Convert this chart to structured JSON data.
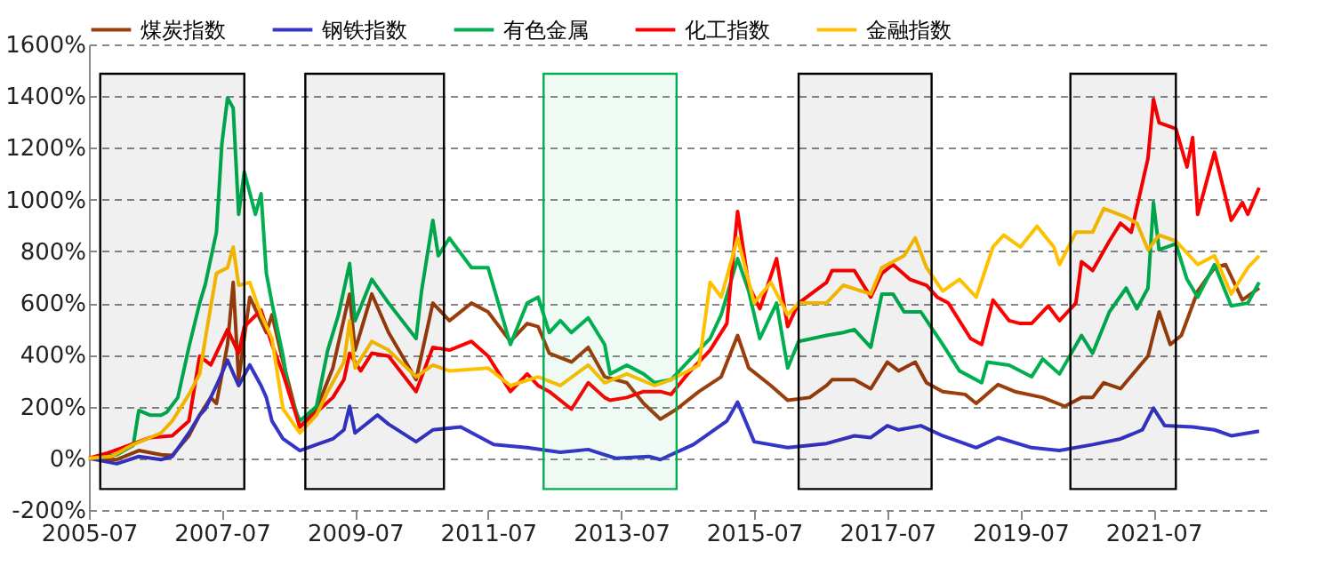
{
  "chart_data": {
    "type": "line",
    "legend": "top",
    "grid": "y",
    "xlim": [
      "2005-07",
      "2023-04"
    ],
    "xticks": [
      "2005-07",
      "2007-07",
      "2009-07",
      "2011-07",
      "2013-07",
      "2015-07",
      "2017-07",
      "2019-07",
      "2021-07"
    ],
    "ylim": [
      -200,
      1600
    ],
    "yticks": [
      {
        "value": -200,
        "label": "-200%"
      },
      {
        "value": 0,
        "label": "0%"
      },
      {
        "value": 200,
        "label": "200%"
      },
      {
        "value": 400,
        "label": "400%"
      },
      {
        "value": 600,
        "label": "600%"
      },
      {
        "value": 800,
        "label": "800%"
      },
      {
        "value": 1000,
        "label": "1000%"
      },
      {
        "value": 1200,
        "label": "1200%"
      },
      {
        "value": 1400,
        "label": "1400%"
      },
      {
        "value": 1600,
        "label": "1600%"
      }
    ],
    "bands": [
      {
        "axis": "x",
        "from": "2005-09",
        "to": "2007-11",
        "color": "#000000"
      },
      {
        "axis": "x",
        "from": "2008-10",
        "to": "2010-11",
        "color": "#000000"
      },
      {
        "axis": "x",
        "from": "2012-05",
        "to": "2014-05",
        "color": "#00b050"
      },
      {
        "axis": "x",
        "from": "2016-03",
        "to": "2018-03",
        "color": "#000000"
      },
      {
        "axis": "x",
        "from": "2020-04",
        "to": "2021-11",
        "color": "#000000"
      }
    ],
    "series": [
      {
        "name": "煤炭指数",
        "color": "#9c3d0c",
        "x": [
          "2005-07",
          "2005-12",
          "2006-04",
          "2006-08",
          "2006-10",
          "2007-01",
          "2007-03",
          "2007-05",
          "2007-06",
          "2007-08",
          "2007-09",
          "2007-10",
          "2007-12",
          "2008-03",
          "2008-04",
          "2008-06",
          "2008-09",
          "2008-12",
          "2009-03",
          "2009-06",
          "2009-07",
          "2009-10",
          "2010-01",
          "2010-06",
          "2010-09",
          "2010-12",
          "2011-04",
          "2011-07",
          "2011-11",
          "2012-02",
          "2012-04",
          "2012-06",
          "2012-10",
          "2013-01",
          "2013-04",
          "2013-08",
          "2013-11",
          "2014-02",
          "2014-05",
          "2014-09",
          "2015-01",
          "2015-04",
          "2015-06",
          "2015-10",
          "2016-01",
          "2016-05",
          "2016-08",
          "2016-09",
          "2017-01",
          "2017-04",
          "2017-07",
          "2017-09",
          "2017-12",
          "2018-02",
          "2018-05",
          "2018-09",
          "2018-11",
          "2019-03",
          "2019-06",
          "2019-11",
          "2020-03",
          "2020-06",
          "2020-08",
          "2020-10",
          "2021-01",
          "2021-06",
          "2021-08",
          "2021-10",
          "2021-12",
          "2022-03",
          "2022-06",
          "2022-08",
          "2022-11",
          "2023-02"
        ],
        "values": [
          0,
          -5,
          30,
          14,
          11,
          87,
          167,
          235,
          212,
          440,
          680,
          304,
          623,
          486,
          555,
          372,
          121,
          190,
          349,
          635,
          418,
          635,
          486,
          304,
          600,
          532,
          600,
          566,
          452,
          521,
          509,
          406,
          372,
          429,
          315,
          292,
          212,
          151,
          190,
          258,
          315,
          475,
          349,
          281,
          224,
          235,
          281,
          304,
          304,
          269,
          372,
          338,
          372,
          292,
          258,
          247,
          212,
          285,
          258,
          235,
          201,
          235,
          235,
          292,
          269,
          395,
          566,
          440,
          475,
          646,
          737,
          749,
          612,
          658
        ]
      },
      {
        "name": "钢铁指数",
        "color": "#3535c8",
        "x": [
          "2005-07",
          "2005-12",
          "2006-04",
          "2006-08",
          "2006-10",
          "2007-01",
          "2007-03",
          "2007-04",
          "2007-06",
          "2007-08",
          "2007-10",
          "2007-12",
          "2008-02",
          "2008-03",
          "2008-04",
          "2008-06",
          "2008-09",
          "2008-12",
          "2009-03",
          "2009-05",
          "2009-06",
          "2009-07",
          "2009-11",
          "2010-01",
          "2010-06",
          "2010-09",
          "2011-02",
          "2011-08",
          "2012-02",
          "2012-08",
          "2013-01",
          "2013-06",
          "2013-12",
          "2014-02",
          "2014-08",
          "2015-02",
          "2015-04",
          "2015-07",
          "2016-01",
          "2016-08",
          "2017-01",
          "2017-04",
          "2017-07",
          "2017-09",
          "2018-01",
          "2018-05",
          "2018-11",
          "2019-03",
          "2019-09",
          "2020-02",
          "2020-08",
          "2021-01",
          "2021-05",
          "2021-07",
          "2021-09",
          "2022-02",
          "2022-06",
          "2022-09",
          "2023-02"
        ],
        "values": [
          0,
          -21,
          7,
          -5,
          7,
          98,
          167,
          190,
          281,
          379,
          281,
          361,
          281,
          235,
          144,
          75,
          30,
          53,
          75,
          110,
          201,
          98,
          167,
          132,
          64,
          110,
          121,
          53,
          41,
          23,
          34,
          0,
          7,
          -5,
          53,
          144,
          217,
          64,
          41,
          57,
          87,
          80,
          126,
          110,
          126,
          87,
          41,
          80,
          41,
          30,
          53,
          75,
          110,
          194,
          126,
          121,
          110,
          87,
          105
        ]
      },
      {
        "name": "有色金属",
        "color": "#00b050",
        "x": [
          "2005-07",
          "2005-12",
          "2006-03",
          "2006-04",
          "2006-06",
          "2006-08",
          "2006-09",
          "2006-11",
          "2007-01",
          "2007-03",
          "2007-04",
          "2007-06",
          "2007-07",
          "2007-08",
          "2007-09",
          "2007-10",
          "2007-11",
          "2008-01",
          "2008-02",
          "2008-03",
          "2008-04",
          "2008-06",
          "2008-07",
          "2008-09",
          "2008-12",
          "2009-02",
          "2009-04",
          "2009-06",
          "2009-07",
          "2009-10",
          "2010-01",
          "2010-06",
          "2010-07",
          "2010-09",
          "2010-10",
          "2010-12",
          "2011-04",
          "2011-07",
          "2011-11",
          "2012-02",
          "2012-04",
          "2012-06",
          "2012-08",
          "2012-10",
          "2013-01",
          "2013-04",
          "2013-05",
          "2013-08",
          "2013-11",
          "2014-01",
          "2014-04",
          "2014-07",
          "2014-11",
          "2015-01",
          "2015-04",
          "2015-06",
          "2015-08",
          "2015-11",
          "2016-01",
          "2016-03",
          "2016-08",
          "2016-11",
          "2017-01",
          "2017-04",
          "2017-06",
          "2017-08",
          "2017-10",
          "2018-01",
          "2018-05",
          "2018-08",
          "2018-12",
          "2019-01",
          "2019-05",
          "2019-09",
          "2019-11",
          "2020-02",
          "2020-06",
          "2020-08",
          "2020-11",
          "2021-02",
          "2021-04",
          "2021-06",
          "2021-07",
          "2021-08",
          "2021-11",
          "2022-01",
          "2022-03",
          "2022-06",
          "2022-09",
          "2022-12",
          "2023-02"
        ],
        "values": [
          0,
          14,
          50,
          185,
          167,
          167,
          178,
          235,
          430,
          600,
          673,
          874,
          1217,
          1393,
          1354,
          943,
          1107,
          943,
          1023,
          715,
          600,
          395,
          258,
          144,
          200,
          418,
          555,
          753,
          532,
          692,
          600,
          463,
          646,
          920,
          783,
          851,
          737,
          737,
          440,
          600,
          623,
          486,
          532,
          486,
          543,
          440,
          326,
          360,
          326,
          292,
          304,
          372,
          463,
          555,
          772,
          646,
          463,
          600,
          349,
          452,
          475,
          486,
          498,
          429,
          635,
          635,
          566,
          566,
          440,
          338,
          292,
          372,
          360,
          315,
          384,
          326,
          475,
          406,
          566,
          658,
          578,
          658,
          989,
          806,
          829,
          692,
          623,
          749,
          589,
          600,
          680
        ]
      },
      {
        "name": "化工指数",
        "color": "#ff0000",
        "x": [
          "2005-07",
          "2005-10",
          "2006-01",
          "2006-06",
          "2006-10",
          "2007-01",
          "2007-03",
          "2007-05",
          "2007-08",
          "2007-10",
          "2007-11",
          "2008-02",
          "2008-03",
          "2008-04",
          "2008-06",
          "2008-09",
          "2008-12",
          "2009-03",
          "2009-05",
          "2009-06",
          "2009-08",
          "2009-10",
          "2010-01",
          "2010-06",
          "2010-09",
          "2010-12",
          "2011-04",
          "2011-07",
          "2011-11",
          "2012-02",
          "2012-04",
          "2012-06",
          "2012-10",
          "2013-01",
          "2013-04",
          "2013-05",
          "2013-08",
          "2013-11",
          "2014-02",
          "2014-04",
          "2014-07",
          "2014-11",
          "2015-02",
          "2015-04",
          "2015-06",
          "2015-08",
          "2015-11",
          "2016-01",
          "2016-03",
          "2016-08",
          "2016-09",
          "2017-01",
          "2017-04",
          "2017-06",
          "2017-08",
          "2017-11",
          "2018-02",
          "2018-04",
          "2018-06",
          "2018-10",
          "2018-12",
          "2019-02",
          "2019-05",
          "2019-07",
          "2019-09",
          "2019-12",
          "2020-02",
          "2020-05",
          "2020-06",
          "2020-08",
          "2020-11",
          "2021-01",
          "2021-03",
          "2021-06",
          "2021-07",
          "2021-08",
          "2021-11",
          "2022-01",
          "2022-02",
          "2022-03",
          "2022-06",
          "2022-09",
          "2022-11",
          "2022-12",
          "2023-02"
        ],
        "values": [
          0,
          18,
          41,
          80,
          87,
          144,
          395,
          361,
          498,
          406,
          509,
          573,
          509,
          440,
          326,
          121,
          178,
          235,
          304,
          406,
          338,
          406,
          395,
          258,
          429,
          418,
          452,
          395,
          258,
          326,
          281,
          258,
          190,
          292,
          235,
          224,
          235,
          258,
          258,
          247,
          326,
          418,
          521,
          954,
          669,
          578,
          772,
          509,
          600,
          680,
          726,
          726,
          623,
          715,
          749,
          692,
          669,
          623,
          600,
          463,
          440,
          612,
          532,
          521,
          521,
          589,
          532,
          600,
          760,
          726,
          840,
          909,
          874,
          1160,
          1388,
          1297,
          1274,
          1126,
          1240,
          943,
          1183,
          920,
          989,
          943,
          1046
        ]
      },
      {
        "name": "金融指数",
        "color": "#ffc000",
        "x": [
          "2005-07",
          "2005-11",
          "2006-03",
          "2006-08",
          "2006-10",
          "2007-01",
          "2007-03",
          "2007-04",
          "2007-06",
          "2007-08",
          "2007-09",
          "2007-10",
          "2007-12",
          "2008-02",
          "2008-04",
          "2008-05",
          "2008-06",
          "2008-09",
          "2008-12",
          "2009-02",
          "2009-05",
          "2009-06",
          "2009-07",
          "2009-10",
          "2010-01",
          "2010-06",
          "2010-09",
          "2010-12",
          "2011-07",
          "2011-11",
          "2012-04",
          "2012-08",
          "2013-01",
          "2013-04",
          "2013-08",
          "2014-01",
          "2014-04",
          "2014-09",
          "2014-11",
          "2015-01",
          "2015-04",
          "2015-07",
          "2015-10",
          "2016-01",
          "2016-03",
          "2016-08",
          "2016-11",
          "2017-04",
          "2017-06",
          "2017-10",
          "2017-12",
          "2018-02",
          "2018-05",
          "2018-08",
          "2018-11",
          "2019-02",
          "2019-04",
          "2019-07",
          "2019-10",
          "2020-01",
          "2020-02",
          "2020-05",
          "2020-08",
          "2020-10",
          "2021-02",
          "2021-04",
          "2021-06",
          "2021-08",
          "2021-11",
          "2022-03",
          "2022-06",
          "2022-09",
          "2022-12",
          "2023-02"
        ],
        "values": [
          0,
          7,
          53,
          98,
          144,
          247,
          326,
          463,
          715,
          737,
          817,
          669,
          680,
          555,
          463,
          326,
          190,
          98,
          167,
          258,
          372,
          532,
          349,
          452,
          418,
          315,
          360,
          338,
          349,
          281,
          315,
          281,
          360,
          292,
          326,
          281,
          304,
          360,
          680,
          623,
          852,
          600,
          680,
          555,
          600,
          600,
          669,
          635,
          737,
          783,
          852,
          737,
          646,
          692,
          623,
          817,
          863,
          817,
          897,
          817,
          749,
          874,
          874,
          966,
          932,
          909,
          806,
          863,
          840,
          749,
          783,
          635,
          737,
          783
        ]
      }
    ]
  }
}
